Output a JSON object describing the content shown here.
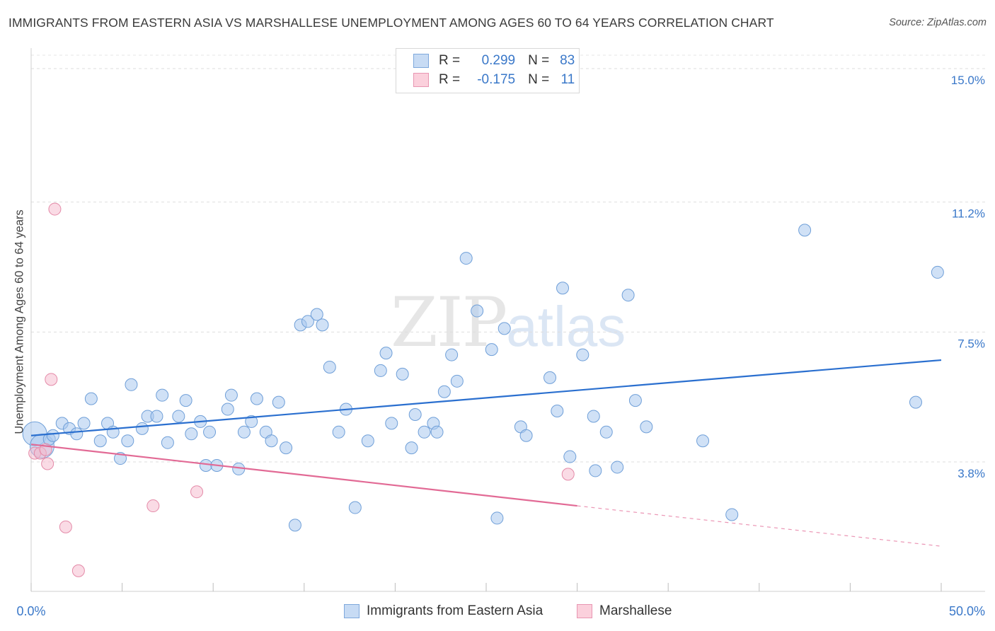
{
  "header": {
    "title": "IMMIGRANTS FROM EASTERN ASIA VS MARSHALLESE UNEMPLOYMENT AMONG AGES 60 TO 64 YEARS CORRELATION CHART",
    "source": "Source: ZipAtlas.com"
  },
  "watermark": {
    "zip": "ZIP",
    "atlas": "atlas"
  },
  "legend": {
    "rows": [
      {
        "r_label": "R =",
        "r_value": "0.299",
        "n_label": "N =",
        "n_value": "83",
        "color": "#aac8ee"
      },
      {
        "r_label": "R =",
        "r_value": "-0.175",
        "n_label": "N =",
        "n_value": "11",
        "color": "#f5b8cb"
      }
    ]
  },
  "chart_data": {
    "type": "scatter",
    "title": "IMMIGRANTS FROM EASTERN ASIA VS MARSHALLESE UNEMPLOYMENT AMONG AGES 60 TO 64 YEARS CORRELATION CHART",
    "xlabel": "",
    "ylabel": "Unemployment Among Ages 60 to 64 years",
    "xlim": [
      0,
      50
    ],
    "ylim": [
      0,
      15.5
    ],
    "x_tick_labels": [
      "0.0%",
      "50.0%"
    ],
    "y_ticks": [
      {
        "value": 3.8,
        "label": "3.8%"
      },
      {
        "value": 7.5,
        "label": "7.5%"
      },
      {
        "value": 11.2,
        "label": "11.2%"
      },
      {
        "value": 15.0,
        "label": "15.0%"
      }
    ],
    "grid": "horizontal-dashed",
    "legend_position": "top-center",
    "series": [
      {
        "name": "Immigrants from Eastern Asia",
        "color": "#aac8ee",
        "stroke": "#6f9fd8",
        "trend_color": "#2a6fcf",
        "trend": {
          "x0": 0,
          "y0": 4.55,
          "x1": 50,
          "y1": 6.7
        },
        "points": [
          {
            "x": 0.2,
            "y": 4.6,
            "big": true
          },
          {
            "x": 0.6,
            "y": 4.25,
            "big": true
          },
          {
            "x": 1.0,
            "y": 4.45
          },
          {
            "x": 1.2,
            "y": 4.55
          },
          {
            "x": 1.7,
            "y": 4.9
          },
          {
            "x": 2.1,
            "y": 4.75
          },
          {
            "x": 2.5,
            "y": 4.6
          },
          {
            "x": 2.9,
            "y": 4.9
          },
          {
            "x": 3.3,
            "y": 5.6
          },
          {
            "x": 3.8,
            "y": 4.4
          },
          {
            "x": 4.2,
            "y": 4.9
          },
          {
            "x": 4.5,
            "y": 4.65
          },
          {
            "x": 4.9,
            "y": 3.9
          },
          {
            "x": 5.3,
            "y": 4.4
          },
          {
            "x": 5.5,
            "y": 6.0
          },
          {
            "x": 6.1,
            "y": 4.75
          },
          {
            "x": 6.4,
            "y": 5.1
          },
          {
            "x": 6.9,
            "y": 5.1
          },
          {
            "x": 7.2,
            "y": 5.7
          },
          {
            "x": 7.5,
            "y": 4.35
          },
          {
            "x": 8.1,
            "y": 5.1
          },
          {
            "x": 8.5,
            "y": 5.55
          },
          {
            "x": 8.8,
            "y": 4.6
          },
          {
            "x": 9.3,
            "y": 4.95
          },
          {
            "x": 9.6,
            "y": 3.7
          },
          {
            "x": 9.8,
            "y": 4.65
          },
          {
            "x": 10.2,
            "y": 3.7
          },
          {
            "x": 10.8,
            "y": 5.3
          },
          {
            "x": 11.0,
            "y": 5.7
          },
          {
            "x": 11.4,
            "y": 3.6
          },
          {
            "x": 11.7,
            "y": 4.65
          },
          {
            "x": 12.1,
            "y": 4.95
          },
          {
            "x": 12.4,
            "y": 5.6
          },
          {
            "x": 12.9,
            "y": 4.65
          },
          {
            "x": 13.2,
            "y": 4.4
          },
          {
            "x": 13.6,
            "y": 5.5
          },
          {
            "x": 14.0,
            "y": 4.2
          },
          {
            "x": 14.5,
            "y": 2.0
          },
          {
            "x": 14.8,
            "y": 7.7
          },
          {
            "x": 15.2,
            "y": 7.8
          },
          {
            "x": 15.7,
            "y": 8.0
          },
          {
            "x": 16.0,
            "y": 7.7
          },
          {
            "x": 16.4,
            "y": 6.5
          },
          {
            "x": 16.9,
            "y": 4.65
          },
          {
            "x": 17.3,
            "y": 5.3
          },
          {
            "x": 17.8,
            "y": 2.5
          },
          {
            "x": 18.5,
            "y": 4.4
          },
          {
            "x": 19.2,
            "y": 6.4
          },
          {
            "x": 19.5,
            "y": 6.9
          },
          {
            "x": 19.8,
            "y": 4.9
          },
          {
            "x": 20.4,
            "y": 6.3
          },
          {
            "x": 20.9,
            "y": 4.2
          },
          {
            "x": 21.1,
            "y": 5.15
          },
          {
            "x": 21.6,
            "y": 4.65
          },
          {
            "x": 22.1,
            "y": 4.9
          },
          {
            "x": 22.3,
            "y": 4.65
          },
          {
            "x": 22.7,
            "y": 5.8
          },
          {
            "x": 23.1,
            "y": 6.85
          },
          {
            "x": 23.4,
            "y": 6.1
          },
          {
            "x": 23.9,
            "y": 9.6
          },
          {
            "x": 24.5,
            "y": 8.1
          },
          {
            "x": 25.3,
            "y": 7.0
          },
          {
            "x": 25.6,
            "y": 2.2
          },
          {
            "x": 26.0,
            "y": 7.6
          },
          {
            "x": 26.9,
            "y": 4.8
          },
          {
            "x": 27.2,
            "y": 4.55
          },
          {
            "x": 28.5,
            "y": 6.2
          },
          {
            "x": 28.9,
            "y": 5.25
          },
          {
            "x": 29.2,
            "y": 8.75
          },
          {
            "x": 29.6,
            "y": 3.95
          },
          {
            "x": 30.3,
            "y": 6.85
          },
          {
            "x": 30.9,
            "y": 5.1
          },
          {
            "x": 31.0,
            "y": 3.55
          },
          {
            "x": 31.6,
            "y": 4.65
          },
          {
            "x": 32.2,
            "y": 3.65
          },
          {
            "x": 32.8,
            "y": 8.55
          },
          {
            "x": 33.2,
            "y": 5.55
          },
          {
            "x": 33.8,
            "y": 4.8
          },
          {
            "x": 36.9,
            "y": 4.4
          },
          {
            "x": 38.5,
            "y": 2.3
          },
          {
            "x": 42.5,
            "y": 10.4
          },
          {
            "x": 48.6,
            "y": 5.5
          },
          {
            "x": 49.8,
            "y": 9.2
          }
        ]
      },
      {
        "name": "Marshallese",
        "color": "#f5b8cb",
        "stroke": "#e48aa8",
        "trend_color": "#e26a95",
        "trend": {
          "x0": 0,
          "y0": 4.3,
          "x1": 30,
          "y1": 2.55
        },
        "trend_dashed_to": {
          "x1": 50,
          "y1": 1.4
        },
        "points": [
          {
            "x": 0.2,
            "y": 4.05
          },
          {
            "x": 0.5,
            "y": 4.05
          },
          {
            "x": 0.8,
            "y": 4.15
          },
          {
            "x": 0.9,
            "y": 3.75
          },
          {
            "x": 1.1,
            "y": 6.15
          },
          {
            "x": 1.3,
            "y": 11.0
          },
          {
            "x": 1.9,
            "y": 1.95
          },
          {
            "x": 2.6,
            "y": 0.7
          },
          {
            "x": 6.7,
            "y": 2.55
          },
          {
            "x": 9.1,
            "y": 2.95
          },
          {
            "x": 29.5,
            "y": 3.45
          }
        ]
      }
    ]
  }
}
